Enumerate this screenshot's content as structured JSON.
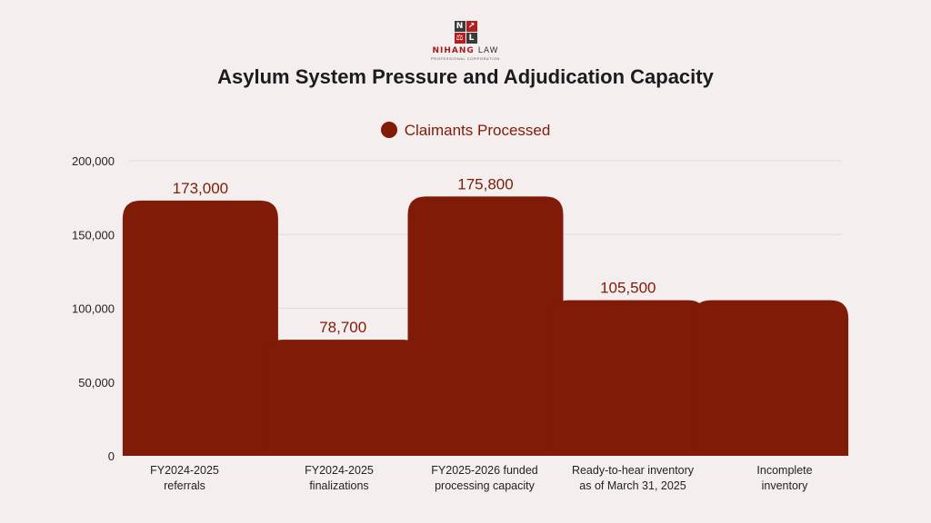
{
  "logo": {
    "cells": [
      "N",
      "↗",
      "⚖",
      "L"
    ],
    "name_bold": "NIHANG",
    "name_rest": "LAW",
    "subtitle": "PROFESSIONAL CORPORATION"
  },
  "colors": {
    "bar": "#7f1b07",
    "axis_text": "#222222",
    "grid": "#e2dcdb"
  },
  "chart_data": {
    "type": "bar",
    "title": "Asylum System Pressure and Adjudication Capacity",
    "legend": [
      "Claimants Processed"
    ],
    "legend_position": "top-center",
    "xlabel": "",
    "ylabel": "",
    "ylim": [
      0,
      200000
    ],
    "yticks": [
      0,
      50000,
      100000,
      150000,
      200000
    ],
    "ytick_labels": [
      "0",
      "50,000",
      "100,000",
      "150,000",
      "200,000"
    ],
    "grid": true,
    "categories": [
      [
        "FY2024-2025",
        "referrals"
      ],
      [
        "FY2024-2025",
        "finalizations"
      ],
      [
        "FY2025-2026 funded",
        "processing capacity"
      ],
      [
        "Ready-to-hear inventory",
        "as of March 31, 2025"
      ],
      [
        "Incomplete",
        "inventory"
      ]
    ],
    "series": [
      {
        "name": "Claimants Processed",
        "values": [
          173000,
          78700,
          175800,
          105500,
          105500
        ],
        "value_labels": [
          "173,000",
          "78,700",
          "175,800",
          "105,500",
          ""
        ]
      }
    ]
  }
}
